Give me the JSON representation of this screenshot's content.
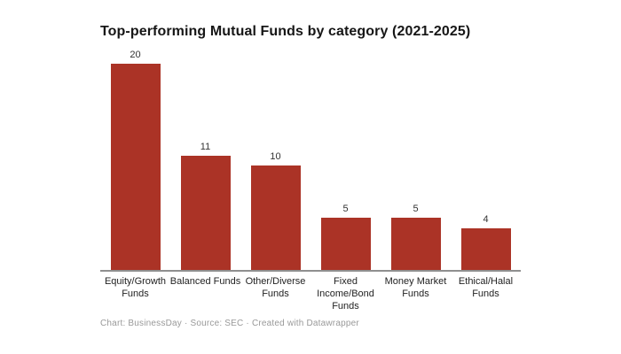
{
  "chart": {
    "title": "Top-performing Mutual Funds by category (2021-2025)",
    "footer": "Chart: BusinessDay · Source: SEC · Created with Datawrapper"
  },
  "chart_data": {
    "type": "bar",
    "title": "Top-performing Mutual Funds by category (2021-2025)",
    "categories": [
      "Equity/Growth Funds",
      "Balanced Funds",
      "Other/Diverse Funds",
      "Fixed Income/Bond Funds",
      "Money Market Funds",
      "Ethical/Halal Funds"
    ],
    "values": [
      20,
      11,
      10,
      5,
      5,
      4
    ],
    "xlabel": "",
    "ylabel": "",
    "ylim": [
      0,
      20
    ],
    "grid": false,
    "legend": false,
    "value_labels_shown": true,
    "footer": "Chart: BusinessDay · Source: SEC · Created with Datawrapper",
    "colors": {
      "bar": "#ab3326",
      "axis_line": "#8f8f8f",
      "title": "#161616",
      "category_label": "#222222",
      "value_label": "#333333",
      "footer": "#999999",
      "background": "#ffffff"
    }
  }
}
